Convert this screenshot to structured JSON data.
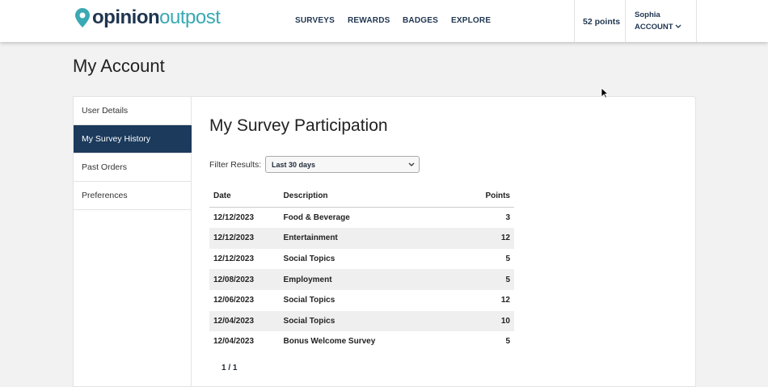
{
  "header": {
    "logo": {
      "part1": "opinion",
      "part2": "outpost"
    },
    "nav": [
      "SURVEYS",
      "REWARDS",
      "BADGES",
      "EXPLORE"
    ],
    "points": "52 points",
    "user": "Sophia",
    "account": "ACCOUNT"
  },
  "page": {
    "title": "My Account"
  },
  "sidebar": {
    "items": [
      "User Details",
      "My Survey History",
      "Past Orders",
      "Preferences"
    ],
    "active": 1
  },
  "content": {
    "title": "My Survey Participation",
    "filter_label": "Filter Results:",
    "filter_value": "Last 30 days",
    "table": {
      "columns": [
        "Date",
        "Description",
        "Points"
      ],
      "rows": [
        [
          "12/12/2023",
          "Food & Beverage",
          3
        ],
        [
          "12/12/2023",
          "Entertainment",
          12
        ],
        [
          "12/12/2023",
          "Social Topics",
          5
        ],
        [
          "12/08/2023",
          "Employment",
          5
        ],
        [
          "12/06/2023",
          "Social Topics",
          12
        ],
        [
          "12/04/2023",
          "Social Topics",
          10
        ],
        [
          "12/04/2023",
          "Bonus Welcome Survey",
          5
        ]
      ]
    },
    "pagination": "1 / 1"
  }
}
